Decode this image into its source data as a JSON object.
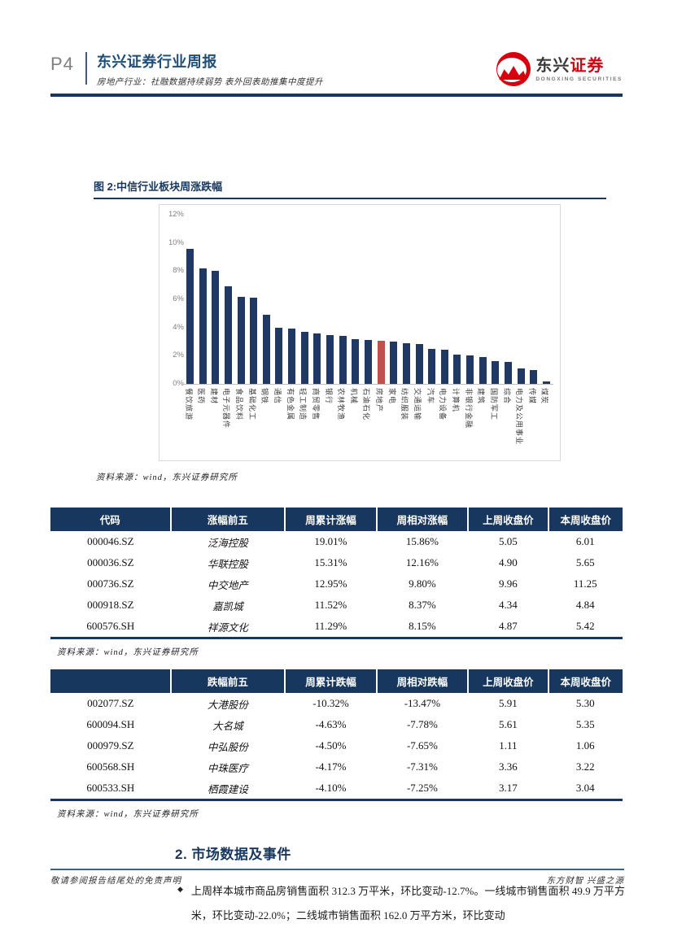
{
  "header": {
    "page_num": "P4",
    "title": "东兴证券行业周报",
    "subtitle": "房地产行业：社融数据持续弱势 表外回表助推集中度提升",
    "logo_cn_dark": "东兴",
    "logo_cn_red": "证券",
    "logo_en": "DONGXING SECURITIES",
    "logo_red": "#D7000F",
    "accent_navy": "#17375E"
  },
  "figure": {
    "title": "图 2:中信行业板块周涨跌幅",
    "source": "资料来源：wind，东兴证券研究所"
  },
  "chart_data": {
    "type": "bar",
    "title": "图 2:中信行业板块周涨跌幅",
    "categories": [
      "餐饮旅游",
      "医药",
      "建材",
      "电子元器件",
      "食品饮料",
      "基础化工",
      "钢铁",
      "通信",
      "有色金属",
      "轻工制造",
      "商贸零售",
      "银行",
      "农林牧渔",
      "机械",
      "石油石化",
      "房地产",
      "家电",
      "纺织服装",
      "交通运输",
      "汽车",
      "电力设备",
      "计算机",
      "非银行金融",
      "建筑",
      "国防军工",
      "综合",
      "电力及公用事业",
      "传媒",
      "煤炭"
    ],
    "values": [
      9.6,
      8.2,
      8.0,
      6.9,
      6.2,
      6.1,
      4.9,
      4.0,
      3.9,
      3.7,
      3.6,
      3.45,
      3.4,
      3.2,
      3.1,
      3.05,
      3.0,
      2.9,
      2.85,
      2.5,
      2.4,
      2.1,
      2.0,
      1.9,
      1.6,
      1.55,
      1.1,
      1.0,
      0.2
    ],
    "unit": "%",
    "ylim": [
      0,
      12
    ],
    "yticks": [
      12,
      10,
      8,
      6,
      4,
      2,
      0
    ],
    "grid": false,
    "bar_color": "#1F3864",
    "highlight_index": 15,
    "highlight_color": "#C0504D",
    "xlabel": "",
    "ylabel": ""
  },
  "tables": {
    "gainers": {
      "headers": [
        "代码",
        "涨幅前五",
        "周累计涨幅",
        "周相对涨幅",
        "上周收盘价",
        "本周收盘价"
      ],
      "rows": [
        [
          "000046.SZ",
          "泛海控股",
          "19.01%",
          "15.86%",
          "5.05",
          "6.01"
        ],
        [
          "000036.SZ",
          "华联控股",
          "15.31%",
          "12.16%",
          "4.90",
          "5.65"
        ],
        [
          "000736.SZ",
          "中交地产",
          "12.95%",
          "9.80%",
          "9.96",
          "11.25"
        ],
        [
          "000918.SZ",
          "嘉凯城",
          "11.52%",
          "8.37%",
          "4.34",
          "4.84"
        ],
        [
          "600576.SH",
          "祥源文化",
          "11.29%",
          "8.15%",
          "4.87",
          "5.42"
        ]
      ],
      "source": "资料来源：wind，东兴证券研究所"
    },
    "losers": {
      "headers": [
        "",
        "跌幅前五",
        "周累计跌幅",
        "周相对跌幅",
        "上周收盘价",
        "本周收盘价"
      ],
      "rows": [
        [
          "002077.SZ",
          "大港股份",
          "-10.32%",
          "-13.47%",
          "5.91",
          "5.30"
        ],
        [
          "600094.SH",
          "大名城",
          "-4.63%",
          "-7.78%",
          "5.61",
          "5.35"
        ],
        [
          "000979.SZ",
          "中弘股份",
          "-4.50%",
          "-7.65%",
          "1.11",
          "1.06"
        ],
        [
          "600568.SH",
          "中珠医疗",
          "-4.17%",
          "-7.31%",
          "3.36",
          "3.22"
        ],
        [
          "600533.SH",
          "栖霞建设",
          "-4.10%",
          "-7.25%",
          "3.17",
          "3.04"
        ]
      ],
      "source": "资料来源：wind，东兴证券研究所"
    }
  },
  "section": {
    "heading": "2. 市场数据及事件",
    "bullet": "◆",
    "paragraph": "上周样本城市商品房销售面积 312.3 万平米，环比变动-12.7%。一线城市销售面积 49.9 万平方米，环比变动-22.0%；二线城市销售面积 162.0 万平方米，环比变动"
  },
  "footer": {
    "left": "敬请参阅报告结尾处的免责声明",
    "right": "东方财智 兴盛之源"
  }
}
